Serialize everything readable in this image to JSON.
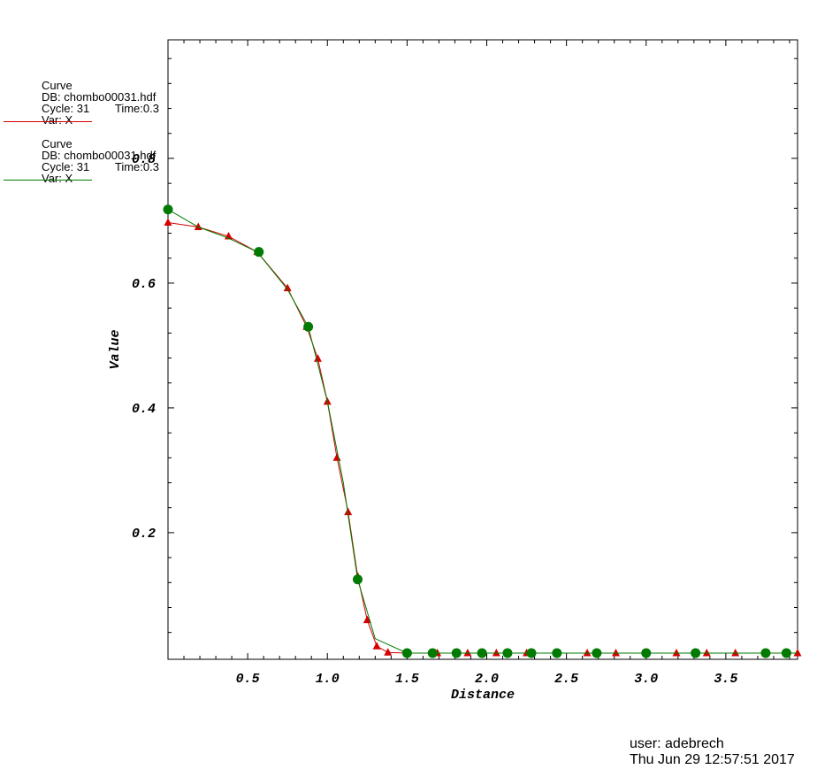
{
  "legend": [
    {
      "title": "Curve",
      "db": "DB: chombo00031.hdf",
      "cycle": "Cycle: 31",
      "time": "Time:0.3",
      "var": "Var: X",
      "color": "#d40000"
    },
    {
      "title": "Curve",
      "db": "DB: chombo00031.hdf",
      "cycle": "Cycle: 31",
      "time": "Time:0.3",
      "var": "Var: X",
      "color": "#007a00"
    }
  ],
  "footer": {
    "user": "user: adebrech",
    "date": "Thu Jun 29 12:57:51 2017"
  },
  "chart_data": {
    "type": "line",
    "xlabel": "Distance",
    "ylabel": "Value",
    "xlim": [
      0,
      3.95
    ],
    "ylim": [
      -0.003,
      0.99
    ],
    "x_ticks": [
      "0.5",
      "1.0",
      "1.5",
      "2.0",
      "2.5",
      "3.0",
      "3.5"
    ],
    "y_ticks": [
      "0.2",
      "0.4",
      "0.6",
      "0.8"
    ],
    "series": [
      {
        "color": "#d40000",
        "marker": "triangle",
        "x": [
          0.0,
          0.19,
          0.38,
          0.56,
          0.75,
          0.87,
          0.94,
          1.0,
          1.06,
          1.13,
          1.19,
          1.25,
          1.31,
          1.38,
          1.5,
          1.69,
          1.88,
          2.06,
          2.25,
          2.44,
          2.63,
          2.81,
          3.0,
          3.19,
          3.38,
          3.56,
          3.75,
          3.95
        ],
        "y": [
          0.697,
          0.69,
          0.675,
          0.65,
          0.592,
          0.53,
          0.479,
          0.41,
          0.32,
          0.233,
          0.13,
          0.06,
          0.018,
          0.008,
          0.007,
          0.007,
          0.007,
          0.007,
          0.007,
          0.007,
          0.007,
          0.007,
          0.007,
          0.007,
          0.007,
          0.007,
          0.007,
          0.007
        ]
      },
      {
        "color": "#007a00",
        "marker": "circle",
        "x": [
          0.0,
          0.19,
          0.38,
          0.56,
          0.75,
          0.88,
          1.0,
          1.1,
          1.19,
          1.3,
          1.5,
          1.66,
          1.81,
          1.97,
          2.13,
          2.28,
          2.44,
          2.69,
          3.0,
          3.31,
          3.75,
          3.88,
          3.95
        ],
        "y": [
          0.718,
          0.69,
          0.672,
          0.65,
          0.59,
          0.53,
          0.41,
          0.28,
          0.125,
          0.03,
          0.007,
          0.007,
          0.007,
          0.007,
          0.007,
          0.007,
          0.007,
          0.007,
          0.007,
          0.007,
          0.007,
          0.007,
          0.007
        ],
        "marker_x": [
          0.0,
          0.57,
          0.88,
          1.19,
          1.5,
          1.66,
          1.81,
          1.97,
          2.13,
          2.28,
          2.44,
          2.69,
          3.0,
          3.31,
          3.75,
          3.88
        ],
        "marker_y": [
          0.718,
          0.65,
          0.53,
          0.125,
          0.007,
          0.007,
          0.007,
          0.007,
          0.007,
          0.007,
          0.007,
          0.007,
          0.007,
          0.007,
          0.007,
          0.007
        ]
      }
    ]
  }
}
